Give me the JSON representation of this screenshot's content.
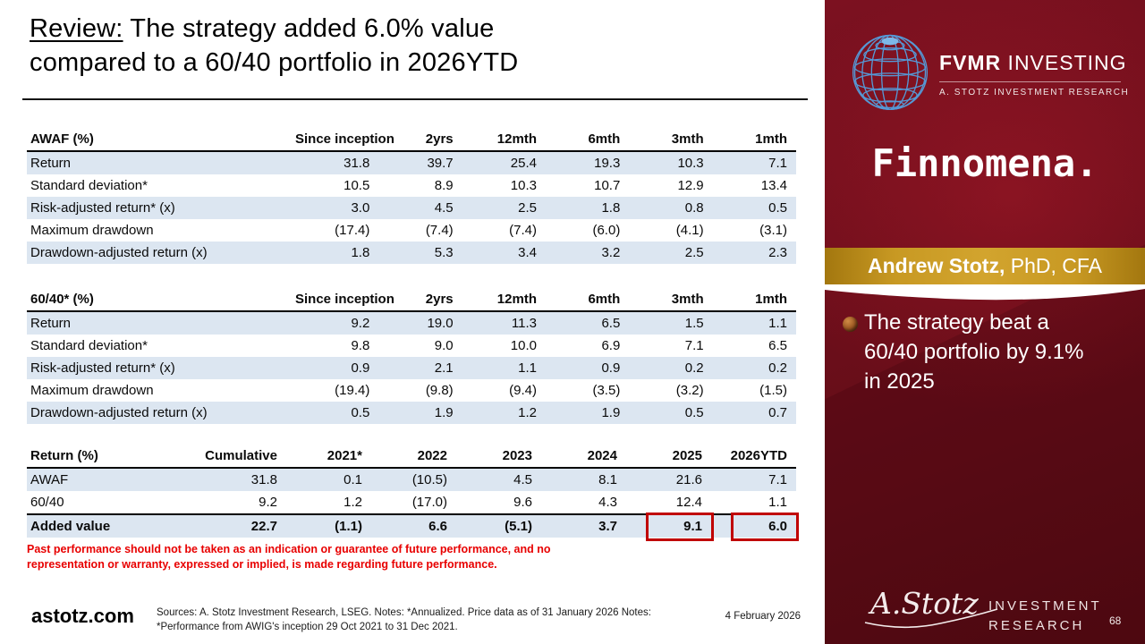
{
  "title": {
    "prefix": "Review:",
    "line1_rest": " The strategy added 6.0% value",
    "line2": "compared to a 60/40 portfolio in 2026YTD"
  },
  "tables": [
    {
      "columns": [
        "AWAF (%)",
        "Since inception",
        "2yrs",
        "12mth",
        "6mth",
        "3mth",
        "1mth"
      ],
      "rows": [
        [
          "Return",
          "31.8",
          "39.7",
          "25.4",
          "19.3",
          "10.3",
          "7.1"
        ],
        [
          "Standard deviation*",
          "10.5",
          "8.9",
          "10.3",
          "10.7",
          "12.9",
          "13.4"
        ],
        [
          "Risk-adjusted return* (x)",
          "3.0",
          "4.5",
          "2.5",
          "1.8",
          "0.8",
          "0.5"
        ],
        [
          "Maximum drawdown",
          "(17.4)",
          "(7.4)",
          "(7.4)",
          "(6.0)",
          "(4.1)",
          "(3.1)"
        ],
        [
          "Drawdown-adjusted return (x)",
          "1.8",
          "5.3",
          "3.4",
          "3.2",
          "2.5",
          "2.3"
        ]
      ]
    },
    {
      "columns": [
        "60/40* (%)",
        "Since inception",
        "2yrs",
        "12mth",
        "6mth",
        "3mth",
        "1mth"
      ],
      "rows": [
        [
          "Return",
          "9.2",
          "19.0",
          "11.3",
          "6.5",
          "1.5",
          "1.1"
        ],
        [
          "Standard deviation*",
          "9.8",
          "9.0",
          "10.0",
          "6.9",
          "7.1",
          "6.5"
        ],
        [
          "Risk-adjusted return* (x)",
          "0.9",
          "2.1",
          "1.1",
          "0.9",
          "0.2",
          "0.2"
        ],
        [
          "Maximum drawdown",
          "(19.4)",
          "(9.8)",
          "(9.4)",
          "(3.5)",
          "(3.2)",
          "(1.5)"
        ],
        [
          "Drawdown-adjusted return (x)",
          "0.5",
          "1.9",
          "1.2",
          "1.9",
          "0.5",
          "0.7"
        ]
      ]
    },
    {
      "columns": [
        "Return (%)",
        "Cumulative",
        "2021*",
        "2022",
        "2023",
        "2024",
        "2025",
        "2026YTD"
      ],
      "rows": [
        [
          "AWAF",
          "31.8",
          "0.1",
          "(10.5)",
          "4.5",
          "8.1",
          "21.6",
          "7.1"
        ],
        [
          "60/40",
          "9.2",
          "1.2",
          "(17.0)",
          "9.6",
          "4.3",
          "12.4",
          "1.1"
        ],
        [
          "Added value",
          "22.7",
          "(1.1)",
          "6.6",
          "(5.1)",
          "3.7",
          "9.1",
          "6.0"
        ]
      ],
      "total_row_index": 2,
      "highlighted_cells": [
        [
          2,
          6
        ],
        [
          2,
          7
        ]
      ],
      "highlight_color": "#c00000"
    }
  ],
  "disclaimer": "Past performance should not be taken as an indication or guarantee of future performance, and no representation or warranty, expressed or implied, is made regarding future performance.",
  "footer": {
    "site": "astotz.com",
    "sources_line1": "Sources: A. Stotz Investment Research, LSEG. Notes: *Annualized. Price data as of 31 January 2026 Notes:",
    "sources_line2": "*Performance from AWIG's inception 29 Oct 2021 to 31 Dec 2021.",
    "date": "4 February 2026"
  },
  "sidebar": {
    "brand": {
      "name_bold": "FVMR",
      "name_rest": " INVESTING",
      "subtitle": "A. STOTZ INVESTMENT RESEARCH"
    },
    "partner_logo": "Finnomena.",
    "author_banner": {
      "name_bold": "Andrew Stotz,",
      "credentials": " PhD, CFA"
    },
    "bullet": {
      "text": "The strategy beat a 60/40 portfolio by 9.1% in 2025",
      "lines": [
        "The strategy beat a",
        "60/40 portfolio by 9.1%",
        "in 2025"
      ]
    },
    "bottom_logo": {
      "script": "A.Stotz",
      "line1": "INVESTMENT",
      "line2": "RESEARCH"
    },
    "page_number": "68",
    "colors": {
      "background_red": "#6B0E18",
      "banner_gold": "#C89923",
      "globe_blue": "#5599D6",
      "table_stripe": "#DCE6F1",
      "highlight_red": "#C00000",
      "disclaimer_red": "#E80000"
    }
  }
}
